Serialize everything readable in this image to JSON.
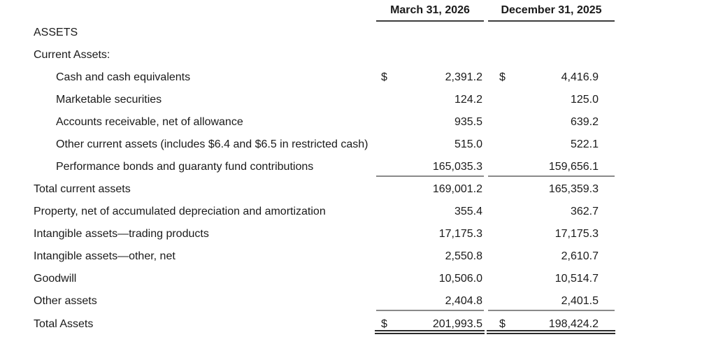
{
  "table": {
    "currency": "$",
    "columns": [
      "March 31, 2026",
      "December 31, 2025"
    ],
    "rows": [
      {
        "label": "ASSETS"
      },
      {
        "label": "Current Assets:"
      },
      {
        "label": "Cash and cash equivalents",
        "values": [
          "2,391.2",
          "4,416.9"
        ]
      },
      {
        "label": "Marketable securities",
        "values": [
          "124.2",
          "125.0"
        ]
      },
      {
        "label": "Accounts receivable, net of allowance",
        "values": [
          "935.5",
          "639.2"
        ]
      },
      {
        "label": "Other current assets (includes $6.4 and $6.5 in restricted cash)",
        "values": [
          "515.0",
          "522.1"
        ]
      },
      {
        "label": "Performance bonds and guaranty fund contributions",
        "values": [
          "165,035.3",
          "159,656.1"
        ]
      },
      {
        "label": "Total current assets",
        "values": [
          "169,001.2",
          "165,359.3"
        ]
      },
      {
        "label": "Property, net of accumulated depreciation and amortization",
        "values": [
          "355.4",
          "362.7"
        ]
      },
      {
        "label": "Intangible assets—trading products",
        "values": [
          "17,175.3",
          "17,175.3"
        ]
      },
      {
        "label": "Intangible assets—other, net",
        "values": [
          "2,550.8",
          "2,610.7"
        ]
      },
      {
        "label": "Goodwill",
        "values": [
          "10,506.0",
          "10,514.7"
        ]
      },
      {
        "label": "Other assets",
        "values": [
          "2,404.8",
          "2,401.5"
        ]
      },
      {
        "label": "Total Assets",
        "values": [
          "201,993.5",
          "198,424.2"
        ]
      }
    ]
  }
}
